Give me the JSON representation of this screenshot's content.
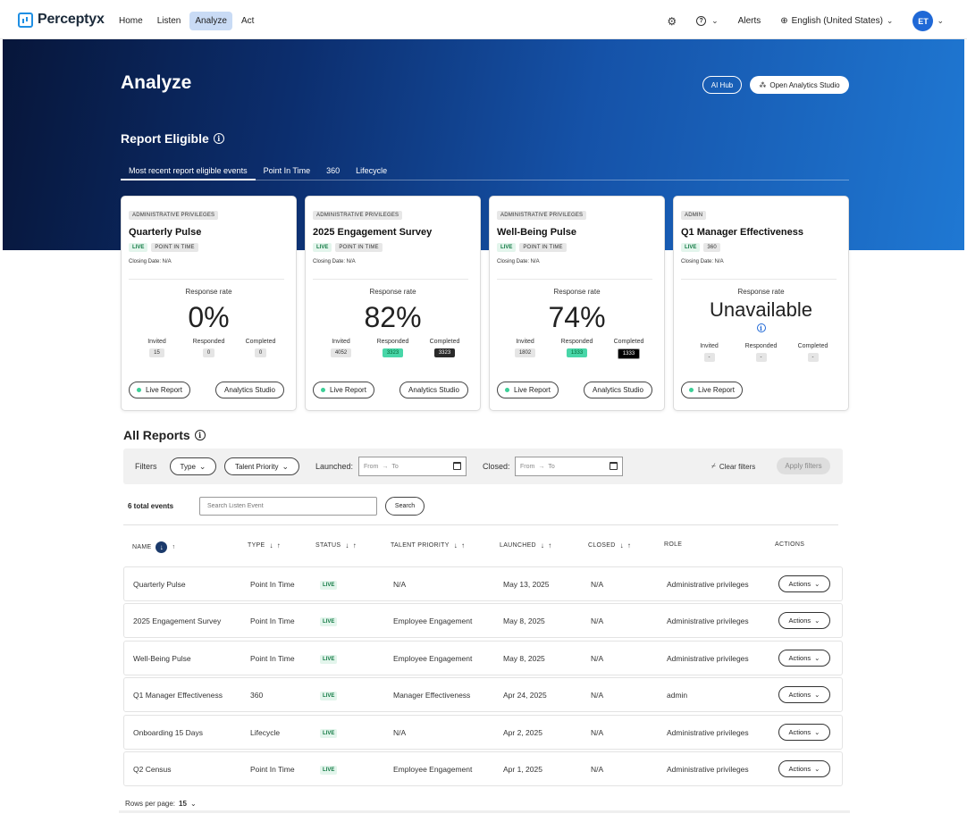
{
  "nav": {
    "brand": "Perceptyx",
    "items": [
      "Home",
      "Listen",
      "Analyze",
      "Act"
    ],
    "active": "Analyze",
    "alerts": "Alerts",
    "language": "English (United States)",
    "avatar_initials": "ET"
  },
  "hero": {
    "title": "Analyze",
    "ai_hub": "AI Hub",
    "open_studio": "Open Analytics Studio",
    "section_title": "Report Eligible",
    "tabs": [
      "Most recent report eligible events",
      "Point In Time",
      "360",
      "Lifecycle"
    ],
    "active_tab": 0
  },
  "cards": [
    {
      "role": "ADMINISTRATIVE PRIVILEGES",
      "title": "Quarterly Pulse",
      "status": "LIVE",
      "type": "POINT IN TIME",
      "closing": "Closing Date: N/A",
      "rr_label": "Response rate",
      "rr_value": "0%",
      "invited_label": "Invited",
      "responded_label": "Responded",
      "completed_label": "Completed",
      "invited": "15",
      "responded": "0",
      "completed": "0",
      "live_report": "Live Report",
      "studio": "Analytics Studio"
    },
    {
      "role": "ADMINISTRATIVE PRIVILEGES",
      "title": "2025 Engagement Survey",
      "status": "LIVE",
      "type": "POINT IN TIME",
      "closing": "Closing Date: N/A",
      "rr_label": "Response rate",
      "rr_value": "82%",
      "invited_label": "Invited",
      "responded_label": "Responded",
      "completed_label": "Completed",
      "invited": "4052",
      "responded": "3323",
      "completed": "3323",
      "live_report": "Live Report",
      "studio": "Analytics Studio"
    },
    {
      "role": "ADMINISTRATIVE PRIVILEGES",
      "title": "Well-Being Pulse",
      "status": "LIVE",
      "type": "POINT IN TIME",
      "closing": "Closing Date: N/A",
      "rr_label": "Response rate",
      "rr_value": "74%",
      "invited_label": "Invited",
      "responded_label": "Responded",
      "completed_label": "Completed",
      "invited": "1802",
      "responded": "1333",
      "completed": "1333",
      "live_report": "Live Report",
      "studio": "Analytics Studio"
    },
    {
      "role": "ADMIN",
      "title": "Q1 Manager Effectiveness",
      "status": "LIVE",
      "type": "360",
      "closing": "Closing Date: N/A",
      "rr_label": "Response rate",
      "rr_value": "Unavailable",
      "invited_label": "Invited",
      "responded_label": "Responded",
      "completed_label": "Completed",
      "invited": "-",
      "responded": "-",
      "completed": "-",
      "live_report": "Live Report"
    }
  ],
  "all_reports": {
    "title": "All Reports",
    "filters_label": "Filters",
    "type_filter": "Type",
    "talent_filter": "Talent Priority",
    "launched_label": "Launched:",
    "closed_label": "Closed:",
    "date_from": "From",
    "date_to": "To",
    "clear_filters": "Clear filters",
    "apply_filters": "Apply filters",
    "total_events": "6 total events",
    "search_placeholder": "Search Listen Event",
    "search_button": "Search",
    "columns": [
      "NAME",
      "TYPE",
      "STATUS",
      "TALENT PRIORITY",
      "LAUNCHED",
      "CLOSED",
      "ROLE",
      "ACTIONS"
    ],
    "rows": [
      {
        "name": "Quarterly Pulse",
        "type": "Point In Time",
        "status": "LIVE",
        "priority": "N/A",
        "launched": "May 13, 2025",
        "closed": "N/A",
        "role": "Administrative privileges",
        "action": "Actions"
      },
      {
        "name": "2025 Engagement Survey",
        "type": "Point In Time",
        "status": "LIVE",
        "priority": "Employee Engagement",
        "launched": "May 8, 2025",
        "closed": "N/A",
        "role": "Administrative privileges",
        "action": "Actions"
      },
      {
        "name": "Well-Being Pulse",
        "type": "Point In Time",
        "status": "LIVE",
        "priority": "Employee Engagement",
        "launched": "May 8, 2025",
        "closed": "N/A",
        "role": "Administrative privileges",
        "action": "Actions"
      },
      {
        "name": "Q1 Manager Effectiveness",
        "type": "360",
        "status": "LIVE",
        "priority": "Manager Effectiveness",
        "launched": "Apr 24, 2025",
        "closed": "N/A",
        "role": "admin",
        "action": "Actions"
      },
      {
        "name": "Onboarding 15 Days",
        "type": "Lifecycle",
        "status": "LIVE",
        "priority": "N/A",
        "launched": "Apr 2, 2025",
        "closed": "N/A",
        "role": "Administrative privileges",
        "action": "Actions"
      },
      {
        "name": "Q2 Census",
        "type": "Point In Time",
        "status": "LIVE",
        "priority": "Employee Engagement",
        "launched": "Apr 1, 2025",
        "closed": "N/A",
        "role": "Administrative privileges",
        "action": "Actions"
      }
    ],
    "rows_per_page_label": "Rows per page:",
    "rows_per_page": "15"
  }
}
